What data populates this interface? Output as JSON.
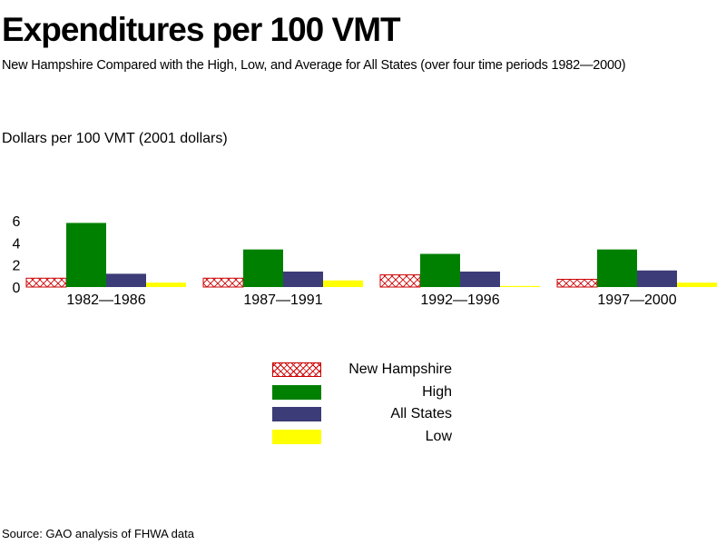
{
  "title": "Expenditures per 100 VMT",
  "subtitle": "New Hampshire Compared with the High, Low, and Average for All States (over four time periods 1982—2000)",
  "ylabel_text": "Dollars per 100 VMT  (2001 dollars)",
  "source": "Source: GAO analysis of FHWA data",
  "chart_data": {
    "type": "bar",
    "categories": [
      "1982—1986",
      "1987—1991",
      "1992—1996",
      "1997—2000"
    ],
    "series": [
      {
        "name": "New Hampshire",
        "values": [
          0.8,
          0.8,
          1.1,
          0.7
        ],
        "color": "#cc0000",
        "pattern": "crosshatch"
      },
      {
        "name": "High",
        "values": [
          5.8,
          3.4,
          3.0,
          3.4
        ],
        "color": "#008000"
      },
      {
        "name": "All States",
        "values": [
          1.2,
          1.4,
          1.4,
          1.5
        ],
        "color": "#3c3c78"
      },
      {
        "name": "Low",
        "values": [
          0.4,
          0.6,
          0.1,
          0.4
        ],
        "color": "#ffff00"
      }
    ],
    "yticks": [
      0,
      2,
      4,
      6
    ],
    "ylim": [
      0,
      6
    ],
    "ylabel": "Dollars per 100 VMT  (2001 dollars)",
    "xlabel": "",
    "legend_position": "bottom-center",
    "grid": false
  }
}
